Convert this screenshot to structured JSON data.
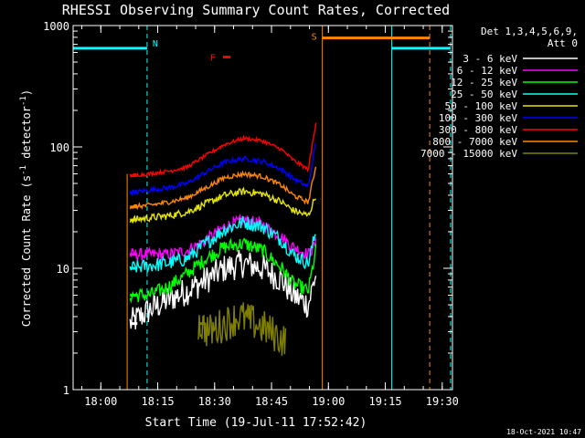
{
  "chart_data": {
    "type": "line",
    "title": "RHESSI Observing Summary Count Rates, Corrected",
    "xlabel": "Start Time (19-Jul-11 17:52:42)",
    "ylabel_main": "Corrected Count Rate (s",
    "ylabel_sup1": "-1",
    "ylabel_mid": " detector",
    "ylabel_sup2": "-1",
    "ylabel_end": ")",
    "x_unit": "minutes after 17:52:42",
    "xlim": [
      0,
      100
    ],
    "ylim": [
      1,
      1000
    ],
    "yscale": "log",
    "x_ticks": [
      {
        "x": 7.3,
        "label": "18:00"
      },
      {
        "x": 22.3,
        "label": "18:15"
      },
      {
        "x": 37.3,
        "label": "18:30"
      },
      {
        "x": 52.3,
        "label": "18:45"
      },
      {
        "x": 67.3,
        "label": "19:00"
      },
      {
        "x": 82.3,
        "label": "19:15"
      },
      {
        "x": 97.3,
        "label": "19:30"
      }
    ],
    "y_ticks": [
      {
        "y": 1,
        "label": "1"
      },
      {
        "y": 10,
        "label": "10"
      },
      {
        "y": 100,
        "label": "100"
      },
      {
        "y": 1000,
        "label": "1000"
      }
    ],
    "legend_header": [
      "Det 1,3,4,5,6,9,",
      "Att 0"
    ],
    "series": [
      {
        "name": "3 - 6 keV",
        "color": "#ffffff",
        "x": [
          15,
          20,
          25,
          30,
          35,
          40,
          45,
          50,
          55,
          58,
          62,
          64
        ],
        "y": [
          3.5,
          4.5,
          5.5,
          6.5,
          8,
          10,
          11,
          10,
          8,
          6,
          5,
          9
        ],
        "noise": 0.12
      },
      {
        "name": "6 - 12 keV",
        "color": "#ff00ff",
        "x": [
          15,
          20,
          25,
          30,
          35,
          40,
          45,
          50,
          55,
          58,
          62,
          64
        ],
        "y": [
          13,
          13,
          13,
          14,
          17,
          22,
          25,
          23,
          18,
          15,
          13,
          16
        ],
        "noise": 0.05
      },
      {
        "name": "12 - 25 keV",
        "color": "#00ff00",
        "x": [
          15,
          20,
          25,
          30,
          35,
          40,
          45,
          50,
          55,
          58,
          62,
          64
        ],
        "y": [
          6,
          6,
          7,
          9,
          12,
          15,
          16,
          14,
          10,
          7.5,
          6.5,
          14
        ],
        "noise": 0.06
      },
      {
        "name": "25 - 50 keV",
        "color": "#00ffff",
        "x": [
          15,
          20,
          25,
          30,
          35,
          40,
          45,
          50,
          55,
          58,
          62,
          64
        ],
        "y": [
          10,
          10.5,
          11,
          12,
          16,
          21,
          24,
          22,
          17,
          13,
          11,
          20
        ],
        "noise": 0.06
      },
      {
        "name": "50 - 100 keV",
        "color": "#e6e600",
        "x": [
          15,
          20,
          25,
          30,
          35,
          40,
          45,
          50,
          55,
          58,
          62,
          64
        ],
        "y": [
          25,
          26,
          27,
          29,
          34,
          40,
          43,
          41,
          35,
          30,
          27,
          40
        ],
        "noise": 0.03
      },
      {
        "name": "100 - 300 keV",
        "color": "#0000ff",
        "x": [
          15,
          20,
          25,
          30,
          35,
          40,
          45,
          50,
          55,
          58,
          62,
          64
        ],
        "y": [
          42,
          44,
          46,
          50,
          62,
          75,
          80,
          76,
          65,
          55,
          47,
          110
        ],
        "noise": 0.02
      },
      {
        "name": "300 - 800 keV",
        "color": "#ff0000",
        "x": [
          15,
          20,
          25,
          30,
          35,
          40,
          45,
          50,
          55,
          58,
          62,
          64
        ],
        "y": [
          58,
          60,
          63,
          68,
          85,
          105,
          118,
          112,
          95,
          78,
          65,
          160
        ],
        "noise": 0.015
      },
      {
        "name": "800 - 7000 keV",
        "color": "#ff8800",
        "x": [
          15,
          20,
          25,
          30,
          35,
          40,
          45,
          50,
          55,
          58,
          62,
          64
        ],
        "y": [
          32,
          33,
          35,
          38,
          46,
          56,
          60,
          57,
          48,
          40,
          35,
          70
        ],
        "noise": 0.02
      },
      {
        "name": "7000 - 15000 keV",
        "color": "#808000",
        "x": [
          33,
          36,
          40,
          44,
          48,
          52,
          56
        ],
        "y": [
          3.5,
          3,
          3.5,
          4,
          3.5,
          3,
          2.5
        ],
        "noise": 0.15
      }
    ],
    "night_intervals": [
      {
        "label": "N",
        "start": 0,
        "end": 19.5
      },
      {
        "label": "",
        "start": 84,
        "end": 99.5
      }
    ],
    "saa_interval": {
      "label": "S",
      "start": 65.7,
      "end": 94
    },
    "flare_flag": {
      "label": "F",
      "start": 39.5,
      "end": 41.5,
      "y": 550
    },
    "data_gaps": [
      {
        "start": 0,
        "end": 14
      },
      {
        "start": 66,
        "end": 100
      }
    ],
    "timestamp": "18-Oct-2021 10:47"
  }
}
